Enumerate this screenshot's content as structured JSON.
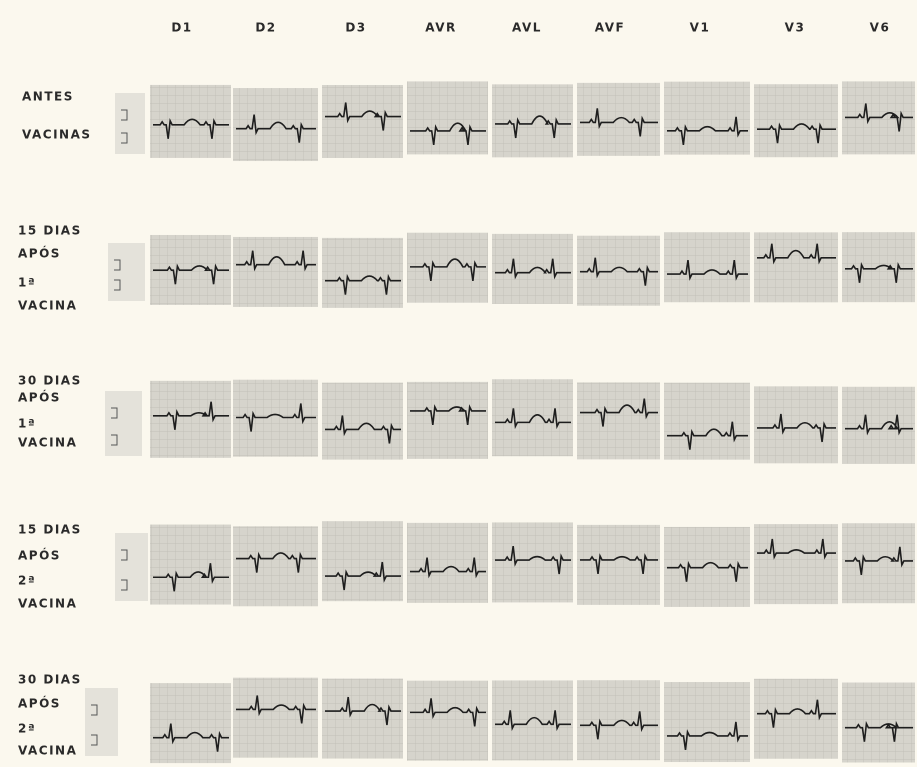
{
  "header": {
    "leads": [
      "D1",
      "D2",
      "D3",
      "AVR",
      "AVL",
      "AVF",
      "V1",
      "V3",
      "V6"
    ]
  },
  "rows": [
    {
      "label": [
        "ANTES",
        "VACINAS"
      ]
    },
    {
      "label": [
        "15 DIAS",
        "APÓS",
        "1ª",
        "VACINA"
      ]
    },
    {
      "label": [
        "30 DIAS",
        "APÓS",
        "1ª",
        "VACINA"
      ]
    },
    {
      "label": [
        "15 DIAS",
        "APÓS",
        "2ª",
        "VACINA"
      ]
    },
    {
      "label": [
        "30 DIAS",
        "APÓS",
        "2ª",
        "VACINA"
      ]
    }
  ]
}
